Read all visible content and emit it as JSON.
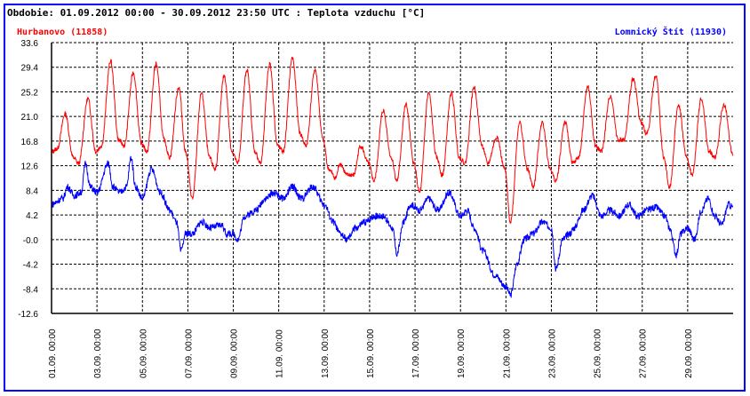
{
  "chart_data": {
    "type": "line",
    "title": "Obdobie: 01.09.2012 00:00 - 30.09.2012 23:50 UTC : Teplota vzduchu [°C]",
    "xlabel": "",
    "ylabel": "",
    "ylim": [
      -12.6,
      33.6
    ],
    "xlim_days": [
      0,
      30
    ],
    "grid": true,
    "yticks": [
      "33.6",
      "29.4",
      "25.2",
      "21.0",
      "16.8",
      "12.6",
      "8.4",
      "4.2",
      "-0.0",
      "-4.2",
      "-8.4",
      "-12.6"
    ],
    "xticks": [
      "01.09. 00:00",
      "03.09. 00:00",
      "05.09. 00:00",
      "07.09. 00:00",
      "09.09. 00:00",
      "11.09. 00:00",
      "13.09. 00:00",
      "15.09. 00:00",
      "17.09. 00:00",
      "19.09. 00:00",
      "21.09. 00:00",
      "23.09. 00:00",
      "25.09. 00:00",
      "27.09. 00:00",
      "29.09. 00:00"
    ],
    "series": [
      {
        "name": "Hurbanovo (11858)",
        "color": "#ff0000",
        "legend": "top-left",
        "points": [
          [
            0,
            15
          ],
          [
            0.25,
            15.5
          ],
          [
            0.6,
            21.5
          ],
          [
            0.95,
            14
          ],
          [
            1.2,
            13
          ],
          [
            1.6,
            24
          ],
          [
            1.95,
            15
          ],
          [
            2.2,
            16
          ],
          [
            2.6,
            30.5
          ],
          [
            2.95,
            17
          ],
          [
            3.2,
            16
          ],
          [
            3.6,
            28.5
          ],
          [
            3.95,
            16.5
          ],
          [
            4.2,
            15
          ],
          [
            4.6,
            30
          ],
          [
            4.95,
            17
          ],
          [
            5.2,
            14
          ],
          [
            5.6,
            26
          ],
          [
            5.9,
            15
          ],
          [
            6.2,
            7
          ],
          [
            6.6,
            25
          ],
          [
            6.95,
            14
          ],
          [
            7.2,
            12
          ],
          [
            7.6,
            28
          ],
          [
            7.95,
            15
          ],
          [
            8.2,
            13
          ],
          [
            8.6,
            29
          ],
          [
            8.95,
            15
          ],
          [
            9.2,
            13
          ],
          [
            9.6,
            30
          ],
          [
            9.95,
            16
          ],
          [
            10.2,
            15
          ],
          [
            10.6,
            31
          ],
          [
            10.95,
            18
          ],
          [
            11.2,
            16
          ],
          [
            11.6,
            29
          ],
          [
            11.95,
            17
          ],
          [
            12.2,
            12
          ],
          [
            12.5,
            10.5
          ],
          [
            12.7,
            13
          ],
          [
            13,
            11
          ],
          [
            13.3,
            11
          ],
          [
            13.6,
            16
          ],
          [
            13.95,
            13
          ],
          [
            14.2,
            10
          ],
          [
            14.6,
            22
          ],
          [
            14.95,
            14
          ],
          [
            15.2,
            10
          ],
          [
            15.6,
            23
          ],
          [
            15.95,
            13
          ],
          [
            16.2,
            8
          ],
          [
            16.6,
            25
          ],
          [
            16.95,
            14
          ],
          [
            17.2,
            11
          ],
          [
            17.6,
            25
          ],
          [
            17.95,
            14
          ],
          [
            18.2,
            13
          ],
          [
            18.6,
            26
          ],
          [
            18.95,
            16
          ],
          [
            19.2,
            13
          ],
          [
            19.6,
            17.5
          ],
          [
            19.95,
            12
          ],
          [
            20.2,
            3
          ],
          [
            20.6,
            20
          ],
          [
            20.95,
            12
          ],
          [
            21.2,
            9
          ],
          [
            21.6,
            20
          ],
          [
            21.95,
            12
          ],
          [
            22.2,
            10
          ],
          [
            22.6,
            20
          ],
          [
            22.95,
            13
          ],
          [
            23.2,
            14
          ],
          [
            23.6,
            26
          ],
          [
            23.95,
            16
          ],
          [
            24.2,
            15
          ],
          [
            24.6,
            24.5
          ],
          [
            24.95,
            17
          ],
          [
            25.2,
            17
          ],
          [
            25.6,
            27.5
          ],
          [
            25.95,
            20
          ],
          [
            26.2,
            18
          ],
          [
            26.6,
            28
          ],
          [
            26.95,
            14
          ],
          [
            27.2,
            9
          ],
          [
            27.6,
            23
          ],
          [
            27.95,
            14
          ],
          [
            28.2,
            11
          ],
          [
            28.6,
            24
          ],
          [
            28.95,
            15
          ],
          [
            29.2,
            14
          ],
          [
            29.6,
            23
          ],
          [
            29.99,
            14.5
          ]
        ]
      },
      {
        "name": "Lomnický Štít (11930)",
        "color": "#0000ff",
        "legend": "top-right",
        "points": [
          [
            0,
            6
          ],
          [
            0.5,
            7
          ],
          [
            0.7,
            9
          ],
          [
            1,
            7.5
          ],
          [
            1.3,
            8
          ],
          [
            1.5,
            13
          ],
          [
            1.7,
            9
          ],
          [
            2,
            8
          ],
          [
            2.5,
            13
          ],
          [
            2.7,
            9
          ],
          [
            3,
            8
          ],
          [
            3.3,
            9
          ],
          [
            3.5,
            14
          ],
          [
            3.7,
            9
          ],
          [
            4,
            7
          ],
          [
            4.4,
            12
          ],
          [
            4.8,
            8
          ],
          [
            5.2,
            5
          ],
          [
            5.5,
            3
          ],
          [
            5.7,
            -2
          ],
          [
            5.9,
            1
          ],
          [
            6.2,
            1
          ],
          [
            6.6,
            3
          ],
          [
            7,
            2
          ],
          [
            7.5,
            2.5
          ],
          [
            7.7,
            1
          ],
          [
            8,
            1
          ],
          [
            8.2,
            0
          ],
          [
            8.5,
            4
          ],
          [
            9,
            5
          ],
          [
            9.4,
            7
          ],
          [
            9.8,
            8
          ],
          [
            10.2,
            7
          ],
          [
            10.6,
            9
          ],
          [
            11,
            7
          ],
          [
            11.5,
            9
          ],
          [
            12,
            6
          ],
          [
            12.4,
            3
          ],
          [
            12.7,
            1
          ],
          [
            13,
            0
          ],
          [
            13.4,
            2
          ],
          [
            13.8,
            3
          ],
          [
            14.2,
            4
          ],
          [
            14.6,
            4
          ],
          [
            15,
            2
          ],
          [
            15.2,
            -2.5
          ],
          [
            15.5,
            3
          ],
          [
            15.8,
            6
          ],
          [
            16.2,
            5
          ],
          [
            16.6,
            7
          ],
          [
            17,
            5
          ],
          [
            17.5,
            8
          ],
          [
            18,
            4
          ],
          [
            18.3,
            5
          ],
          [
            18.6,
            2
          ],
          [
            19,
            -2
          ],
          [
            19.5,
            -6
          ],
          [
            20,
            -8
          ],
          [
            20.2,
            -9.5
          ],
          [
            20.5,
            -4
          ],
          [
            20.8,
            0
          ],
          [
            21.2,
            1
          ],
          [
            21.6,
            3
          ],
          [
            22,
            2
          ],
          [
            22.2,
            -5
          ],
          [
            22.5,
            0
          ],
          [
            22.8,
            1
          ],
          [
            23,
            2
          ],
          [
            23.4,
            5
          ],
          [
            23.8,
            7.5
          ],
          [
            24.2,
            4
          ],
          [
            24.6,
            5
          ],
          [
            25,
            4
          ],
          [
            25.4,
            6
          ],
          [
            25.8,
            4
          ],
          [
            26.2,
            5
          ],
          [
            26.6,
            5.5
          ],
          [
            27,
            4
          ],
          [
            27.2,
            2
          ],
          [
            27.5,
            -2.5
          ],
          [
            27.7,
            1
          ],
          [
            28,
            2
          ],
          [
            28.3,
            0
          ],
          [
            28.6,
            5
          ],
          [
            28.9,
            7
          ],
          [
            29.2,
            4
          ],
          [
            29.5,
            2.5
          ],
          [
            29.8,
            6
          ],
          [
            29.99,
            5.5
          ]
        ]
      }
    ]
  }
}
